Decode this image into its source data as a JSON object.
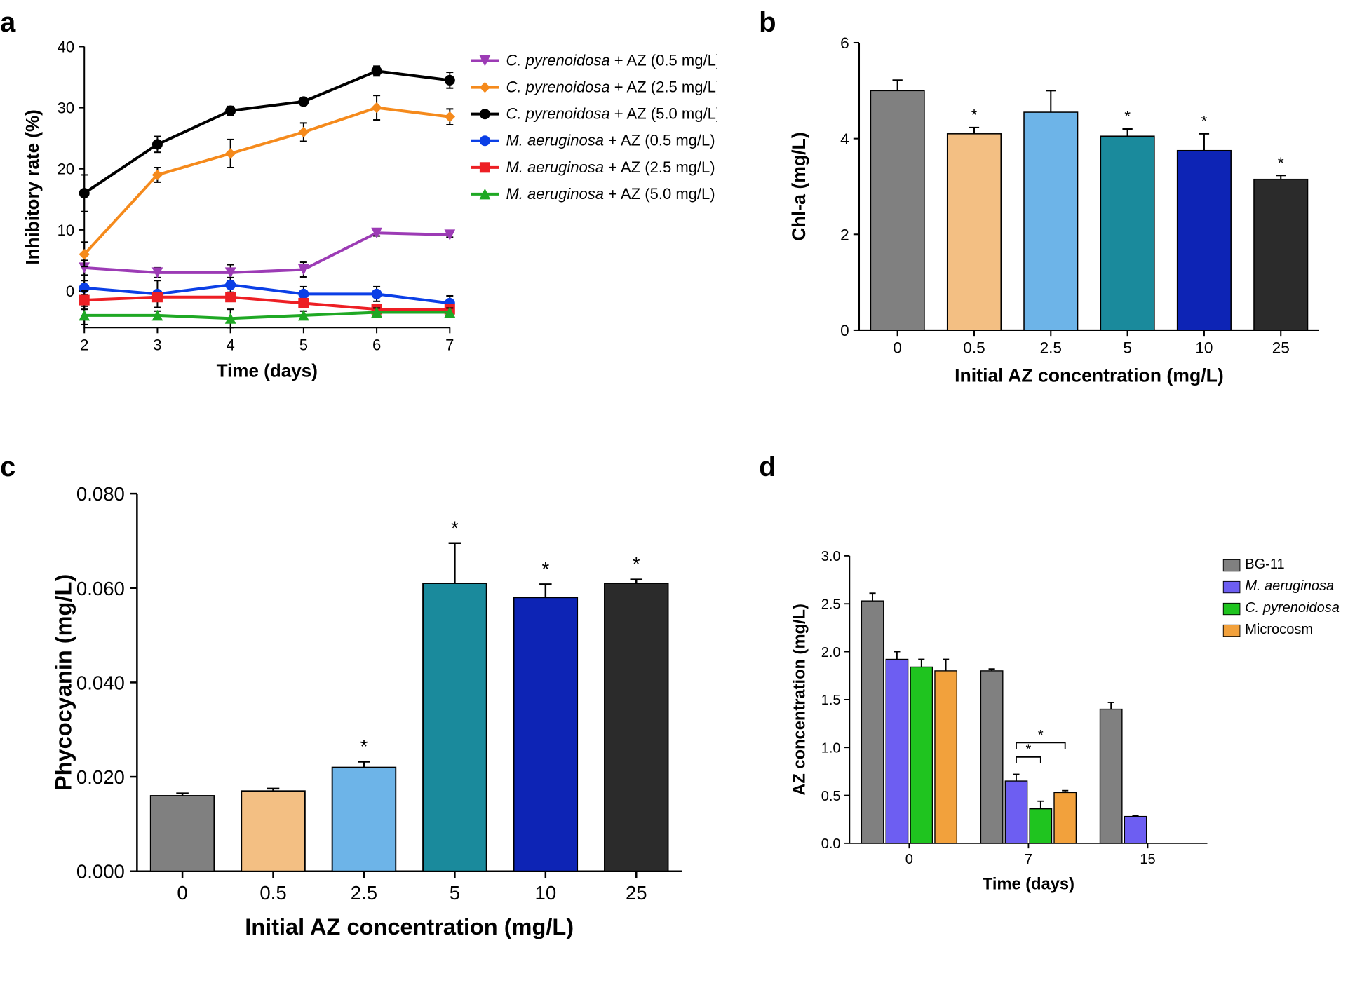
{
  "panel_labels": {
    "a": "a",
    "b": "b",
    "c": "c",
    "d": "d"
  },
  "panel_a": {
    "type": "line",
    "xlabel": "Time (days)",
    "ylabel": "Inhibitory rate (%)",
    "label_fontsize": 26,
    "tick_fontsize": 22,
    "xlim": [
      2,
      7
    ],
    "ylim": [
      -6,
      40
    ],
    "xticks": [
      2,
      3,
      4,
      5,
      6,
      7
    ],
    "yticks": [
      0,
      10,
      20,
      30,
      40
    ],
    "background_color": "#ffffff",
    "axis_color": "#000000",
    "line_width": 4,
    "marker_size": 7,
    "series": [
      {
        "name": "C. pyrenoidosa + AZ (0.5 mg/L)",
        "color": "#9c3bb5",
        "marker": "triangle-down",
        "x": [
          2,
          3,
          4,
          5,
          6,
          7
        ],
        "y": [
          3.8,
          3,
          3,
          3.5,
          9.5,
          9.2
        ],
        "err": [
          1.2,
          0.8,
          1.3,
          1.2,
          0.5,
          0.4
        ]
      },
      {
        "name": "C. pyrenoidosa + AZ (2.5 mg/L)",
        "color": "#f58a1c",
        "marker": "diamond",
        "x": [
          2,
          3,
          4,
          5,
          6,
          7
        ],
        "y": [
          6,
          19,
          22.5,
          26,
          30,
          28.5
        ],
        "err": [
          2,
          1.2,
          2.3,
          1.5,
          2,
          1.3
        ]
      },
      {
        "name": "C. pyrenoidosa + AZ (5.0 mg/L)",
        "color": "#000000",
        "marker": "circle",
        "x": [
          2,
          3,
          4,
          5,
          6,
          7
        ],
        "y": [
          16,
          24,
          29.5,
          31,
          36,
          34.5
        ],
        "err": [
          3,
          1.3,
          0.7,
          0.6,
          0.8,
          1.3
        ]
      },
      {
        "name": "M. aeruginosa + AZ (0.5 mg/L)",
        "color": "#0b3fe6",
        "marker": "circle",
        "x": [
          2,
          3,
          4,
          5,
          6,
          7
        ],
        "y": [
          0.5,
          -0.5,
          1,
          -0.5,
          -0.5,
          -2
        ],
        "err": [
          1.2,
          2.2,
          1.2,
          1.2,
          1.2,
          1.2
        ]
      },
      {
        "name": "M. aeruginosa + AZ (2.5 mg/L)",
        "color": "#ed1f24",
        "marker": "square",
        "x": [
          2,
          3,
          4,
          5,
          6,
          7
        ],
        "y": [
          -1.5,
          -1,
          -1,
          -2,
          -3,
          -3
        ],
        "err": [
          1.5,
          0.7,
          0.6,
          0.6,
          0.6,
          0.6
        ]
      },
      {
        "name": "M. aeruginosa + AZ (5.0 mg/L)",
        "color": "#1fa824",
        "marker": "triangle-up",
        "x": [
          2,
          3,
          4,
          5,
          6,
          7
        ],
        "y": [
          -4,
          -4,
          -4.5,
          -4,
          -3.5,
          -3.5
        ],
        "err": [
          1.5,
          0.7,
          1.5,
          0.7,
          0.7,
          0.7
        ]
      }
    ]
  },
  "panel_b": {
    "type": "bar",
    "xlabel": "Initial  AZ concentration (mg/L)",
    "ylabel": "Chl-a (mg/L)",
    "label_fontsize": 26,
    "tick_fontsize": 22,
    "ylim": [
      0,
      6
    ],
    "yticks": [
      0,
      2,
      4,
      6
    ],
    "categories": [
      "0",
      "0.5",
      "2.5",
      "5",
      "10",
      "25"
    ],
    "values": [
      5.0,
      4.1,
      4.55,
      4.05,
      3.75,
      3.15
    ],
    "err": [
      0.22,
      0.13,
      0.45,
      0.15,
      0.35,
      0.08
    ],
    "sig": [
      "",
      "*",
      "",
      "*",
      "*",
      "*"
    ],
    "bar_colors": [
      "#808080",
      "#f3bf83",
      "#6db4e8",
      "#1a8a9c",
      "#0d24b5",
      "#2b2b2b"
    ],
    "bar_width": 0.7,
    "background_color": "#ffffff"
  },
  "panel_c": {
    "type": "bar",
    "xlabel": "Initial  AZ concentration (mg/L)",
    "ylabel": "Phycocyanin (mg/L)",
    "label_fontsize": 26,
    "tick_fontsize": 22,
    "ylim": [
      0,
      0.08
    ],
    "yticks": [
      0.0,
      0.02,
      0.04,
      0.06,
      0.08
    ],
    "ytick_labels": [
      "0.000",
      "0.020",
      "0.040",
      "0.060",
      "0.080"
    ],
    "categories": [
      "0",
      "0.5",
      "2.5",
      "5",
      "10",
      "25"
    ],
    "values": [
      0.016,
      0.017,
      0.022,
      0.061,
      0.058,
      0.061
    ],
    "err": [
      0.0005,
      0.0005,
      0.0012,
      0.0085,
      0.0028,
      0.0008
    ],
    "sig": [
      "",
      "",
      "*",
      "*",
      "*",
      "*"
    ],
    "bar_colors": [
      "#808080",
      "#f3bf83",
      "#6db4e8",
      "#1a8a9c",
      "#0d24b5",
      "#2b2b2b"
    ],
    "bar_width": 0.7,
    "background_color": "#ffffff"
  },
  "panel_d": {
    "type": "grouped-bar",
    "xlabel": "Time (days)",
    "ylabel": "AZ concentration (mg/L)",
    "label_fontsize": 26,
    "tick_fontsize": 22,
    "ylim": [
      0,
      3.0
    ],
    "yticks": [
      0.0,
      0.5,
      1.0,
      1.5,
      2.0,
      2.5,
      3.0
    ],
    "categories": [
      "0",
      "7",
      "15"
    ],
    "groups": [
      {
        "name": "BG-11",
        "color": "#808080",
        "values": [
          2.53,
          1.8,
          1.4
        ],
        "err": [
          0.08,
          0.02,
          0.07
        ]
      },
      {
        "name": "M. aeruginosa",
        "color": "#6d5ef2",
        "values": [
          1.92,
          0.65,
          0.28
        ],
        "err": [
          0.08,
          0.07,
          0.01
        ]
      },
      {
        "name": "C. pyrenoidosa",
        "color": "#1fc41f",
        "values": [
          1.84,
          0.36,
          0
        ],
        "err": [
          0.08,
          0.08,
          0
        ]
      },
      {
        "name": "Microcosm",
        "color": "#f2a13c",
        "values": [
          1.8,
          0.53,
          0
        ],
        "err": [
          0.12,
          0.02,
          0
        ]
      }
    ],
    "sig_brackets": [
      {
        "category": 1,
        "from_group": 1,
        "to_group": 2,
        "y": 0.9,
        "label": "*"
      },
      {
        "category": 1,
        "from_group": 1,
        "to_group": 3,
        "y": 1.05,
        "label": "*"
      }
    ],
    "bar_width": 0.19,
    "background_color": "#ffffff"
  }
}
